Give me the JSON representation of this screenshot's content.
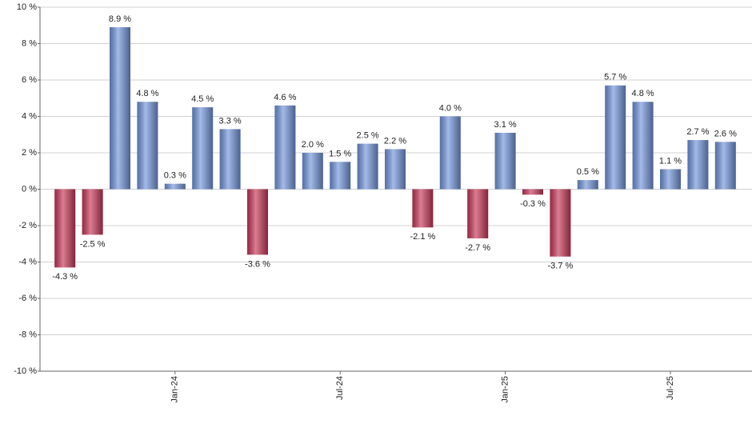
{
  "chart_data": {
    "type": "bar",
    "categories": [
      null,
      null,
      null,
      null,
      "Jan-24",
      null,
      null,
      null,
      null,
      null,
      "Jul-24",
      null,
      null,
      null,
      null,
      null,
      "Jan-25",
      null,
      null,
      null,
      null,
      null,
      "Jul-25",
      null,
      null
    ],
    "values": [
      -4.3,
      -2.5,
      8.9,
      4.8,
      0.3,
      4.5,
      3.3,
      -3.6,
      4.6,
      2.0,
      1.5,
      2.5,
      2.2,
      -2.1,
      4.0,
      -2.7,
      3.1,
      -0.3,
      -3.7,
      0.5,
      5.7,
      4.8,
      1.1,
      2.7,
      2.6
    ],
    "value_labels": [
      "-4.3 %",
      "-2.5 %",
      "8.9 %",
      "4.8 %",
      "0.3 %",
      "4.5 %",
      "3.3 %",
      "-3.6 %",
      "4.6 %",
      "2.0 %",
      "1.5 %",
      "2.5 %",
      "2.2 %",
      "-2.1 %",
      "4.0 %",
      "-2.7 %",
      "3.1 %",
      "-0.3 %",
      "-3.7 %",
      "0.5 %",
      "5.7 %",
      "4.8 %",
      "1.1 %",
      "2.7 %",
      "2.6 %"
    ],
    "colors": {
      "positive": "#7396dc",
      "negative": "#c8385a"
    },
    "ylim": [
      -10,
      10
    ],
    "yticks": [
      {
        "value": -10,
        "label": "-10 %"
      },
      {
        "value": -8,
        "label": "-8 %"
      },
      {
        "value": -6,
        "label": "-6 %"
      },
      {
        "value": -4,
        "label": "-4 %"
      },
      {
        "value": -2,
        "label": "-2 %"
      },
      {
        "value": 0,
        "label": "0 %"
      },
      {
        "value": 2,
        "label": "2 %"
      },
      {
        "value": 4,
        "label": "4 %"
      },
      {
        "value": 6,
        "label": "6 %"
      },
      {
        "value": 8,
        "label": "8 %"
      },
      {
        "value": 10,
        "label": "10 %"
      }
    ],
    "grid": true
  }
}
